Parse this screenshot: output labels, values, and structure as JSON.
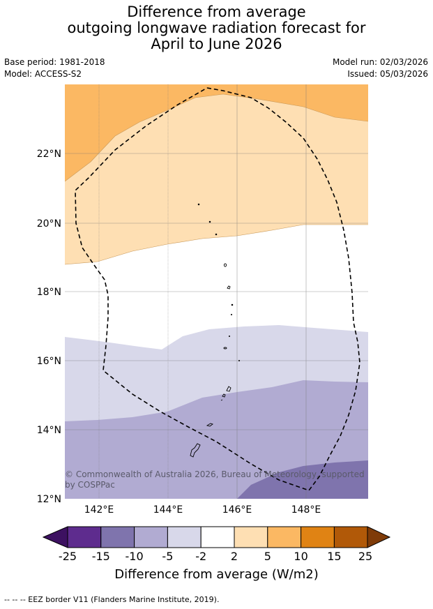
{
  "title": {
    "line1": "Difference from average",
    "line2": "outgoing longwave radiation forecast for",
    "line3": "April to June 2026"
  },
  "meta": {
    "base_period": "Base period: 1981-2018",
    "model": "Model: ACCESS-S2",
    "model_run": "Model run: 02/03/2026",
    "issued": "Issued: 05/03/2026"
  },
  "map": {
    "lon_ticks": [
      "142°E",
      "144°E",
      "146°E",
      "148°E"
    ],
    "lat_ticks": [
      "22°N",
      "20°N",
      "18°N",
      "16°N",
      "14°N",
      "12°N"
    ],
    "copyright": "© Commonwealth of Australia 2026, Bureau of Meteorology, supported",
    "copyright_line2": "by COSPPac"
  },
  "colorbar": {
    "labels": [
      "-25",
      "-15",
      "-10",
      "-5",
      "-2",
      "2",
      "5",
      "10",
      "15",
      "25"
    ],
    "colors": [
      "#3d1161",
      "#5e2c8e",
      "#7f74ad",
      "#b1abd2",
      "#d8d8ea",
      "#ffffff",
      "#fedfb3",
      "#fbb863",
      "#e08314",
      "#b15908",
      "#7f3b08"
    ],
    "title": "Difference from average (W/m2)"
  },
  "footer": "--  --  -- EEZ border V11 (Flanders Marine Institute, 2019)."
}
